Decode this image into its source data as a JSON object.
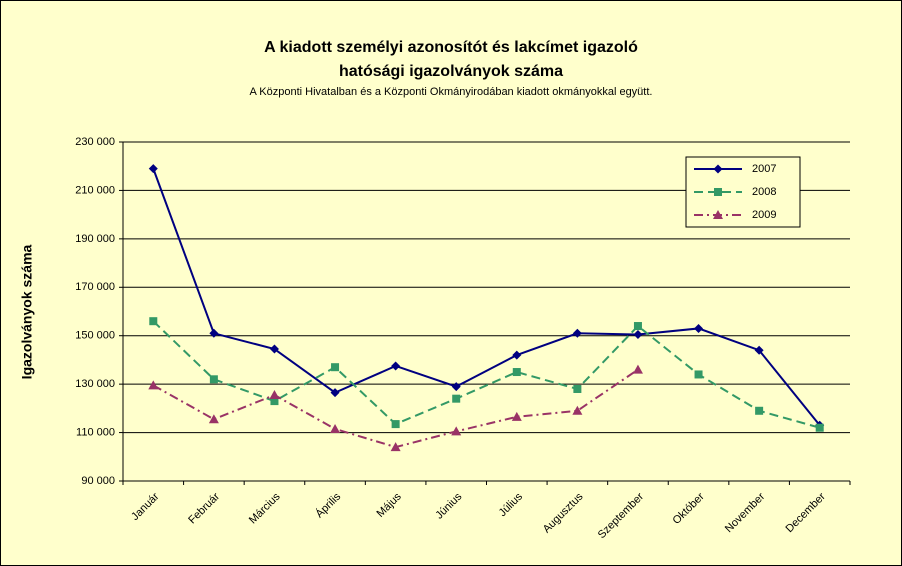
{
  "chart_data": {
    "type": "line",
    "title": "A kiadott személyi azonosítót és lakcímet igazoló",
    "title_line2": "hatósági igazolványok száma",
    "subtitle": "A Központi Hivatalban és a Központi Okmányirodában kiadott okmányokkal együtt.",
    "y_label": "Igazolványok száma",
    "categories": [
      "Január",
      "Február",
      "Március",
      "Április",
      "Május",
      "Június",
      "Július",
      "Augusztus",
      "Szeptember",
      "Október",
      "November",
      "December"
    ],
    "series": [
      {
        "name": "2007",
        "color": "#000080",
        "dash": "solid",
        "marker": "diamond",
        "values": [
          219000,
          151000,
          144500,
          126500,
          137500,
          129000,
          142000,
          151000,
          150500,
          153000,
          144000,
          113000
        ]
      },
      {
        "name": "2008",
        "color": "#339966",
        "dash": "dashed",
        "marker": "square",
        "values": [
          156000,
          132000,
          123000,
          137000,
          113500,
          124000,
          135000,
          128000,
          154000,
          134000,
          119000,
          112000
        ]
      },
      {
        "name": "2009",
        "color": "#993366",
        "dash": "dashdot",
        "marker": "triangle",
        "values": [
          129500,
          115500,
          125500,
          111500,
          104000,
          110500,
          116500,
          119000,
          136000,
          null,
          null,
          null
        ]
      }
    ],
    "ylim": [
      90000,
      230000
    ],
    "yticks": [
      {
        "value": 90000,
        "label": "90 000"
      },
      {
        "value": 110000,
        "label": "110 000"
      },
      {
        "value": 130000,
        "label": "130 000"
      },
      {
        "value": 150000,
        "label": "150 000"
      },
      {
        "value": 170000,
        "label": "170 000"
      },
      {
        "value": 190000,
        "label": "190 000"
      },
      {
        "value": 210000,
        "label": "210 000"
      },
      {
        "value": 230000,
        "label": "230 000"
      }
    ],
    "grid": true,
    "legend": "top-right",
    "background": "#ffffcc"
  }
}
